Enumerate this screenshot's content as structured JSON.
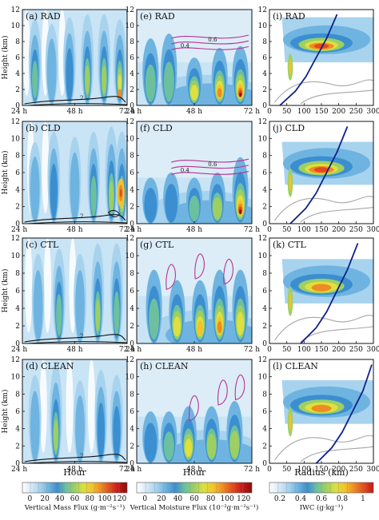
{
  "chart_data": {
    "type": "heatmap",
    "panels": [
      {
        "id": "a",
        "label": "(a) RAD",
        "column": 1,
        "row": 1
      },
      {
        "id": "b",
        "label": "(b) CLD",
        "column": 1,
        "row": 2
      },
      {
        "id": "c",
        "label": "(c) CTL",
        "column": 1,
        "row": 3
      },
      {
        "id": "d",
        "label": "(d) CLEAN",
        "column": 1,
        "row": 4
      },
      {
        "id": "e",
        "label": "(e) RAD",
        "column": 2,
        "row": 1
      },
      {
        "id": "f",
        "label": "(f) CLD",
        "column": 2,
        "row": 2
      },
      {
        "id": "g",
        "label": "(g) CTL",
        "column": 2,
        "row": 3
      },
      {
        "id": "h",
        "label": "(h) CLEAN",
        "column": 2,
        "row": 4
      },
      {
        "id": "i",
        "label": "(i) RAD",
        "column": 3,
        "row": 1
      },
      {
        "id": "j",
        "label": "(j) CLD",
        "column": 3,
        "row": 2
      },
      {
        "id": "k",
        "label": "(k) CTL",
        "column": 3,
        "row": 3
      },
      {
        "id": "l",
        "label": "(l) CLEAN",
        "column": 3,
        "row": 4
      }
    ],
    "y_axis": {
      "label": "Height (km)",
      "ticks": [
        "0",
        "2",
        "4",
        "6",
        "8",
        "10",
        "12"
      ],
      "ylim": [
        0,
        12
      ]
    },
    "x_axes": [
      {
        "column": 1,
        "label": "Hour",
        "ticks": [
          "24 h",
          "48 h",
          "72 h"
        ],
        "xlim": [
          24,
          72
        ]
      },
      {
        "column": 2,
        "label": "Hour",
        "ticks": [
          "24 h",
          "48 h",
          "72 h"
        ],
        "xlim": [
          24,
          72
        ]
      },
      {
        "column": 3,
        "label": "Radius (km)",
        "ticks": [
          "0",
          "50",
          "100",
          "150",
          "200",
          "250",
          "300"
        ],
        "xlim": [
          0,
          300
        ]
      }
    ],
    "colorbars": [
      {
        "column": 1,
        "title": "Vertical Mass Flux (g·m⁻²s⁻¹)",
        "ticks": [
          "0",
          "20",
          "40",
          "60",
          "80",
          "100",
          "120"
        ],
        "colors": [
          "#ffffff",
          "#d6eaf6",
          "#a8d3ee",
          "#6fb4e0",
          "#3b8fd0",
          "#6cc0a0",
          "#9ecf62",
          "#dde040",
          "#f2c32c",
          "#f08a22",
          "#e24a1c",
          "#c41818",
          "#8e0d0d"
        ]
      },
      {
        "column": 2,
        "title": "Vertical Moisture Flux (10⁻²g·m⁻²s⁻¹)",
        "ticks": [
          "0",
          "20",
          "40",
          "60",
          "80",
          "100",
          "120"
        ],
        "colors": [
          "#ffffff",
          "#d6eaf6",
          "#a8d3ee",
          "#6fb4e0",
          "#3b8fd0",
          "#6cc0a0",
          "#9ecf62",
          "#dde040",
          "#f2c32c",
          "#f08a22",
          "#e24a1c",
          "#c41818",
          "#8e0d0d"
        ]
      },
      {
        "column": 3,
        "title": "IWC (g·kg⁻¹)",
        "ticks": [
          "0.2",
          "0.4",
          "0.6",
          "0.8",
          "1"
        ],
        "colors": [
          "#ffffff",
          "#d6eaf6",
          "#a8d3ee",
          "#6fb4e0",
          "#3b8fd0",
          "#6cc0a0",
          "#9ecf62",
          "#dde040",
          "#f2c32c",
          "#f08a22",
          "#e24a1c",
          "#c41818"
        ]
      }
    ],
    "contour_labels": {
      "col1": [
        "2",
        "2"
      ],
      "col2": [
        "0.4",
        "0.6"
      ]
    },
    "colors": {
      "contour_col1": "#111111",
      "contour_col2": "#b8338f",
      "contour_col3_gray": "#a6a6a6",
      "contour_col3_blue": "#10208c"
    }
  }
}
